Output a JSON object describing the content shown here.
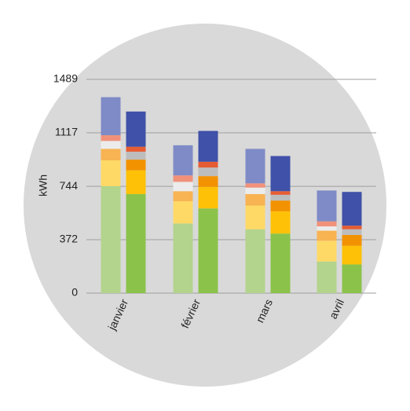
{
  "chart_data": {
    "type": "bar",
    "stacked": true,
    "paired": true,
    "ylabel": "kWh",
    "xlabel": "",
    "ylim": [
      0,
      1489
    ],
    "yticks": [
      "0",
      "372",
      "744",
      "1117",
      "1489"
    ],
    "grid": true,
    "categories": [
      "janvier",
      "février",
      "mars",
      "avril"
    ],
    "colors": {
      "background_disc": "#d9d9d9",
      "gridline": "#9e9e9e"
    },
    "bars": [
      {
        "name": "left",
        "segment_colors": [
          "#b3d48c",
          "#fed966",
          "#f8b352",
          "#ececec",
          "#f1917a",
          "#7e8bc6"
        ],
        "values": [
          [
            745,
            180,
            80,
            55,
            40,
            265
          ],
          [
            485,
            155,
            70,
            65,
            45,
            210
          ],
          [
            445,
            165,
            80,
            45,
            30,
            240
          ],
          [
            220,
            145,
            70,
            30,
            35,
            215
          ]
        ]
      },
      {
        "name": "right",
        "segment_colors": [
          "#8bc34a",
          "#ffc107",
          "#f39200",
          "#bdbdbd",
          "#e65d33",
          "#3f51a8"
        ],
        "values": [
          [
            690,
            165,
            75,
            55,
            35,
            245
          ],
          [
            590,
            150,
            75,
            60,
            40,
            215
          ],
          [
            415,
            155,
            75,
            40,
            25,
            245
          ],
          [
            200,
            130,
            75,
            40,
            25,
            235
          ]
        ]
      }
    ]
  }
}
